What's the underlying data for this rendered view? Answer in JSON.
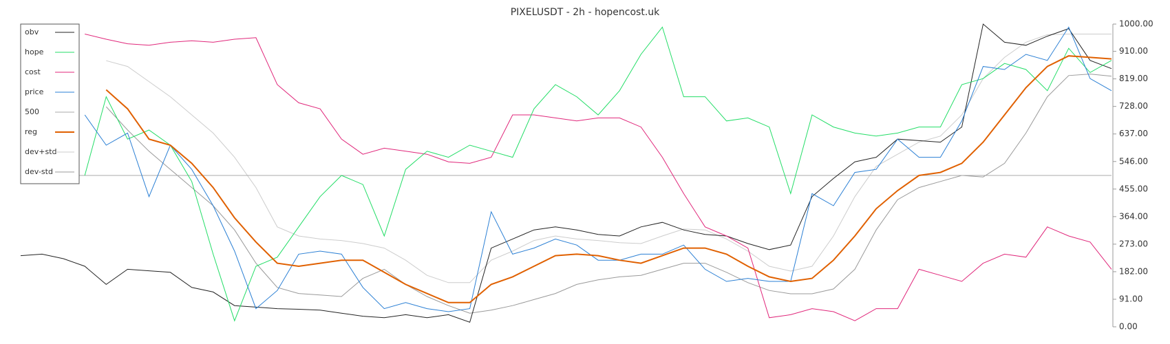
{
  "chart_data": {
    "type": "line",
    "title": "PIXELUSDT - 2h - hopencost.uk",
    "ylim": [
      0,
      1000
    ],
    "yticks": [
      {
        "value": 0,
        "label": "0.00"
      },
      {
        "value": 91,
        "label": "91.00"
      },
      {
        "value": 182,
        "label": "182.00"
      },
      {
        "value": 273,
        "label": "273.00"
      },
      {
        "value": 364,
        "label": "364.00"
      },
      {
        "value": 455,
        "label": "455.00"
      },
      {
        "value": 546,
        "label": "546.00"
      },
      {
        "value": 637,
        "label": "637.00"
      },
      {
        "value": 728,
        "label": "728.00"
      },
      {
        "value": 819,
        "label": "819.00"
      },
      {
        "value": 910,
        "label": "910.00"
      },
      {
        "value": 1000,
        "label": "1000.00"
      }
    ],
    "legend": "upper left",
    "series": [
      {
        "name": "obv",
        "color": "#222222",
        "width": 1,
        "values": [
          235,
          240,
          225,
          200,
          140,
          190,
          185,
          180,
          130,
          115,
          70,
          65,
          60,
          58,
          55,
          45,
          35,
          30,
          40,
          30,
          40,
          15,
          260,
          290,
          320,
          330,
          320,
          305,
          300,
          330,
          345,
          320,
          305,
          300,
          275,
          255,
          270,
          430,
          490,
          545,
          560,
          620,
          615,
          610,
          660,
          1000,
          940,
          930,
          960,
          985,
          880,
          853
        ]
      },
      {
        "name": "hope",
        "color": "#22dd66",
        "width": 1,
        "values": [
          null,
          null,
          null,
          500,
          760,
          620,
          650,
          600,
          480,
          240,
          20,
          200,
          230,
          330,
          430,
          500,
          470,
          300,
          520,
          580,
          560,
          600,
          580,
          560,
          720,
          800,
          760,
          700,
          780,
          900,
          990,
          760,
          760,
          680,
          690,
          660,
          440,
          700,
          660,
          640,
          630,
          640,
          660,
          660,
          800,
          820,
          870,
          850,
          780,
          920,
          840,
          880
        ]
      },
      {
        "name": "cost",
        "color": "#e0267a",
        "width": 1,
        "values": [
          null,
          null,
          null,
          967,
          950,
          935,
          930,
          940,
          945,
          940,
          950,
          955,
          800,
          740,
          720,
          620,
          570,
          590,
          580,
          570,
          545,
          540,
          560,
          700,
          700,
          690,
          680,
          690,
          690,
          660,
          560,
          440,
          330,
          300,
          260,
          30,
          40,
          60,
          50,
          20,
          60,
          60,
          190,
          170,
          150,
          210,
          240,
          230,
          330,
          300,
          280,
          190
        ]
      },
      {
        "name": "price",
        "color": "#2a7fd4",
        "width": 1,
        "values": [
          null,
          null,
          null,
          700,
          600,
          640,
          430,
          600,
          520,
          400,
          250,
          60,
          120,
          240,
          250,
          240,
          130,
          60,
          80,
          60,
          50,
          60,
          380,
          240,
          260,
          290,
          270,
          220,
          220,
          240,
          240,
          270,
          190,
          150,
          160,
          150,
          150,
          440,
          400,
          510,
          520,
          620,
          560,
          560,
          680,
          860,
          850,
          900,
          880,
          990,
          820,
          780
        ]
      },
      {
        "name": "500",
        "color": "#aaaaaa",
        "width": 1,
        "values": [
          500,
          500,
          500,
          500,
          500,
          500,
          500,
          500,
          500,
          500,
          500,
          500,
          500,
          500,
          500,
          500,
          500,
          500,
          500,
          500,
          500,
          500,
          500,
          500,
          500,
          500,
          500,
          500,
          500,
          500,
          500,
          500,
          500,
          500,
          500,
          500,
          500,
          500,
          500,
          500,
          500,
          500,
          500,
          500,
          500,
          500,
          500,
          500,
          500,
          500,
          500,
          500
        ]
      },
      {
        "name": "reg",
        "color": "#e06000",
        "width": 2,
        "values": [
          null,
          null,
          null,
          null,
          783,
          720,
          620,
          600,
          540,
          460,
          360,
          280,
          210,
          200,
          210,
          220,
          220,
          180,
          140,
          110,
          80,
          80,
          140,
          165,
          200,
          235,
          240,
          235,
          220,
          210,
          235,
          260,
          260,
          240,
          200,
          165,
          150,
          160,
          220,
          300,
          390,
          450,
          500,
          510,
          540,
          610,
          700,
          790,
          860,
          895,
          890,
          885
        ]
      },
      {
        "name": "dev+std",
        "color": "#cccccc",
        "width": 1,
        "values": [
          null,
          null,
          null,
          null,
          879,
          860,
          810,
          760,
          700,
          640,
          560,
          460,
          330,
          300,
          290,
          285,
          275,
          260,
          220,
          170,
          146,
          146,
          220,
          250,
          285,
          300,
          290,
          285,
          278,
          275,
          300,
          323,
          320,
          290,
          250,
          200,
          184,
          200,
          300,
          430,
          530,
          570,
          610,
          630,
          700,
          820,
          890,
          940,
          965,
          967,
          967,
          967
        ]
      },
      {
        "name": "dev-std",
        "color": "#999999",
        "width": 1,
        "values": [
          null,
          null,
          null,
          null,
          727,
          650,
          580,
          520,
          460,
          400,
          320,
          210,
          130,
          110,
          105,
          100,
          160,
          190,
          140,
          100,
          70,
          45,
          55,
          70,
          90,
          110,
          140,
          155,
          165,
          170,
          190,
          210,
          210,
          180,
          146,
          120,
          109,
          109,
          125,
          190,
          320,
          420,
          460,
          480,
          500,
          495,
          540,
          640,
          760,
          830,
          835,
          828
        ]
      }
    ]
  }
}
